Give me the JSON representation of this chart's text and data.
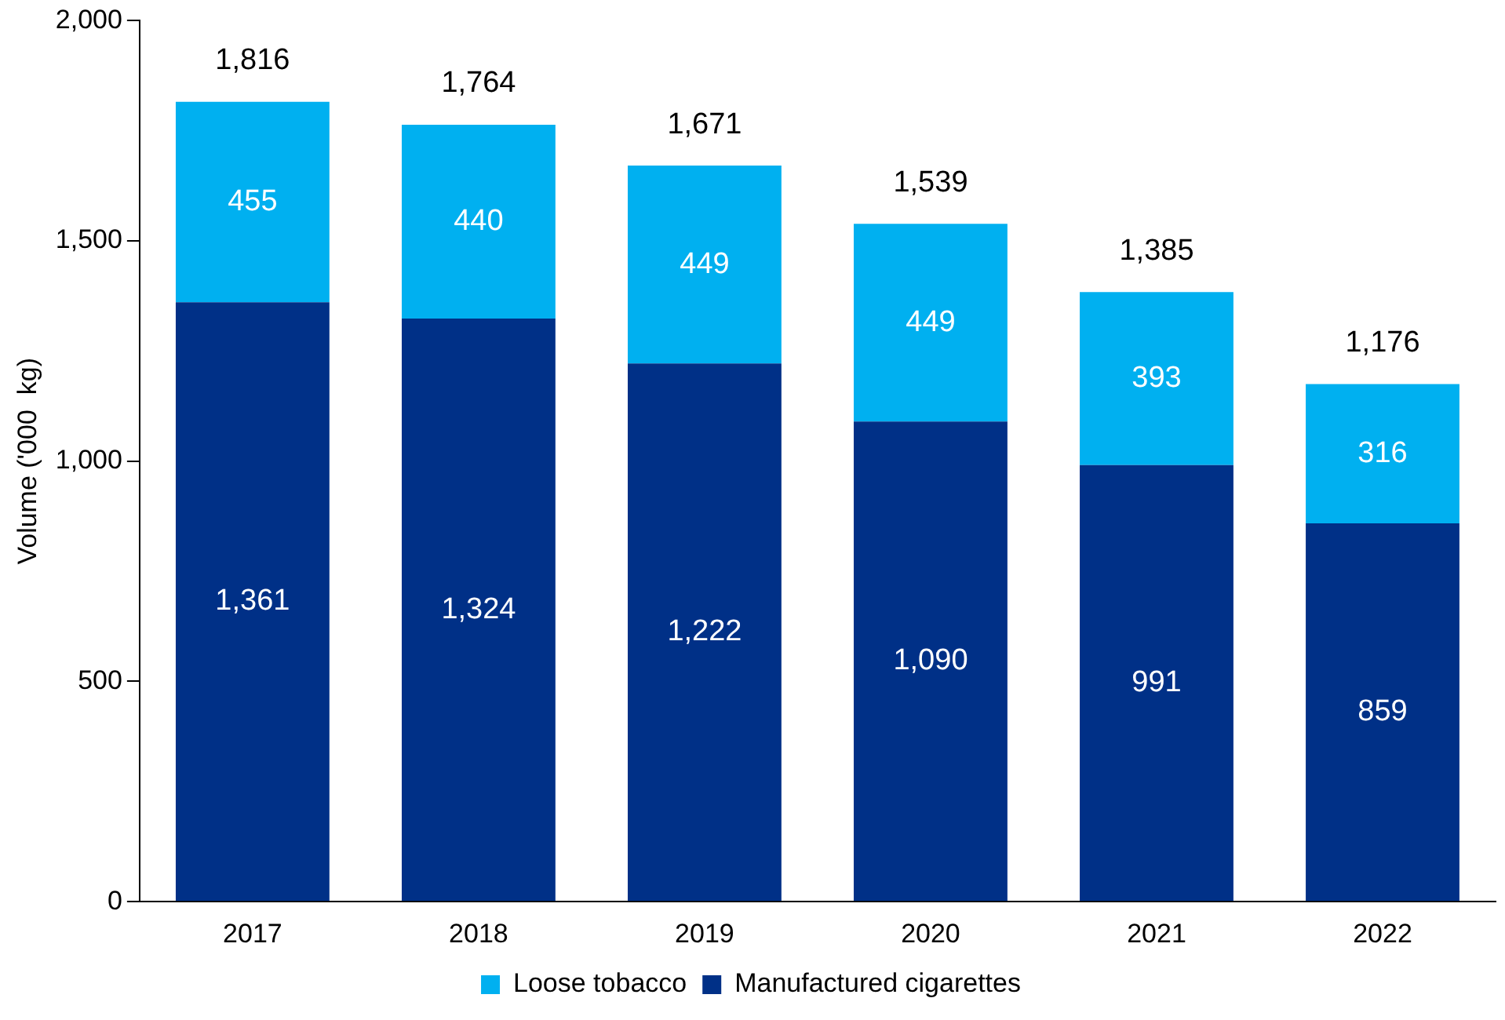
{
  "chart_data": {
    "type": "bar",
    "stacked": true,
    "ylabel": "Volume ('000  kg)",
    "categories": [
      "2017",
      "2018",
      "2019",
      "2020",
      "2021",
      "2022"
    ],
    "series": [
      {
        "name": "Manufactured cigarettes",
        "color": "#003087",
        "values": [
          1361,
          1324,
          1222,
          1090,
          991,
          859
        ],
        "value_labels": [
          "1,361",
          "1,324",
          "1,222",
          "1,090",
          "991",
          "859"
        ]
      },
      {
        "name": "Loose tobacco",
        "color": "#00b0f0",
        "values": [
          455,
          440,
          449,
          449,
          393,
          316
        ],
        "value_labels": [
          "455",
          "440",
          "449",
          "449",
          "393",
          "316"
        ]
      }
    ],
    "ylim": [
      0,
      2000
    ],
    "yticks": [
      {
        "value": 0,
        "label": "0"
      },
      {
        "value": 500,
        "label": "500"
      },
      {
        "value": 1000,
        "label": "1,000"
      },
      {
        "value": 1500,
        "label": "1,500"
      },
      {
        "value": 2000,
        "label": "2,000"
      }
    ],
    "grid": false,
    "legend": "bottom",
    "totals": [
      "1,816",
      "1,764",
      "1,671",
      "1,539",
      "1,385",
      "1,176"
    ]
  }
}
